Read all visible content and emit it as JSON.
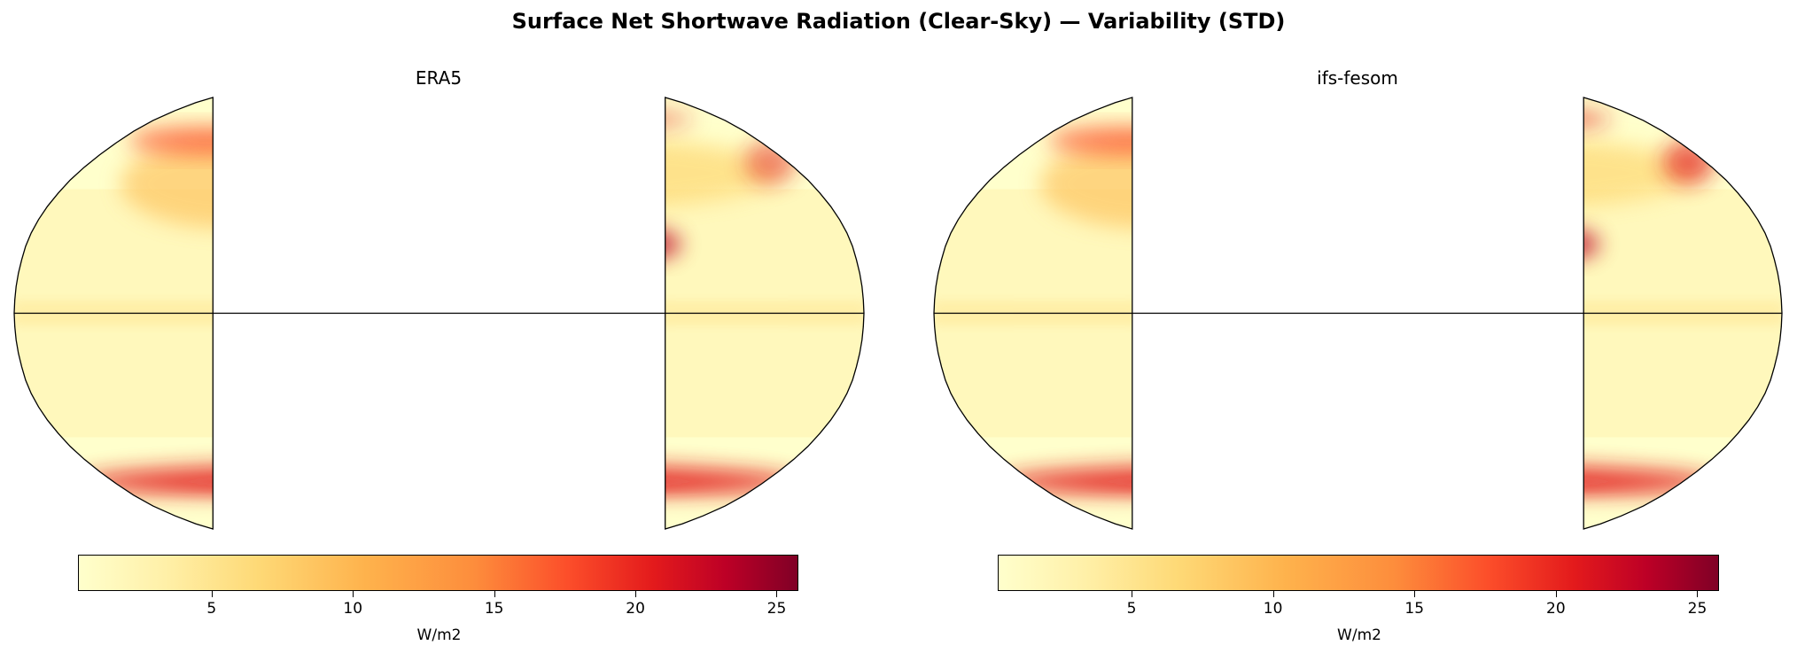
{
  "title": "Surface Net Shortwave Radiation (Clear-Sky) — Variability (STD)",
  "projection": "Robinson",
  "colormap": "YlOrRd",
  "colors": {
    "low": "#ffffcc",
    "mid": "#fd8d3c",
    "high": "#800026"
  },
  "panels": [
    {
      "title": "ERA5",
      "colorbar": {
        "label": "W/m2",
        "ticks": [
          "5",
          "10",
          "15",
          "20",
          "25"
        ],
        "range": [
          0.3,
          25.8
        ]
      }
    },
    {
      "title": "ifs-fesom",
      "colorbar": {
        "label": "W/m2",
        "ticks": [
          "5",
          "10",
          "15",
          "20",
          "25"
        ],
        "range": [
          0.3,
          25.8
        ]
      }
    }
  ]
}
